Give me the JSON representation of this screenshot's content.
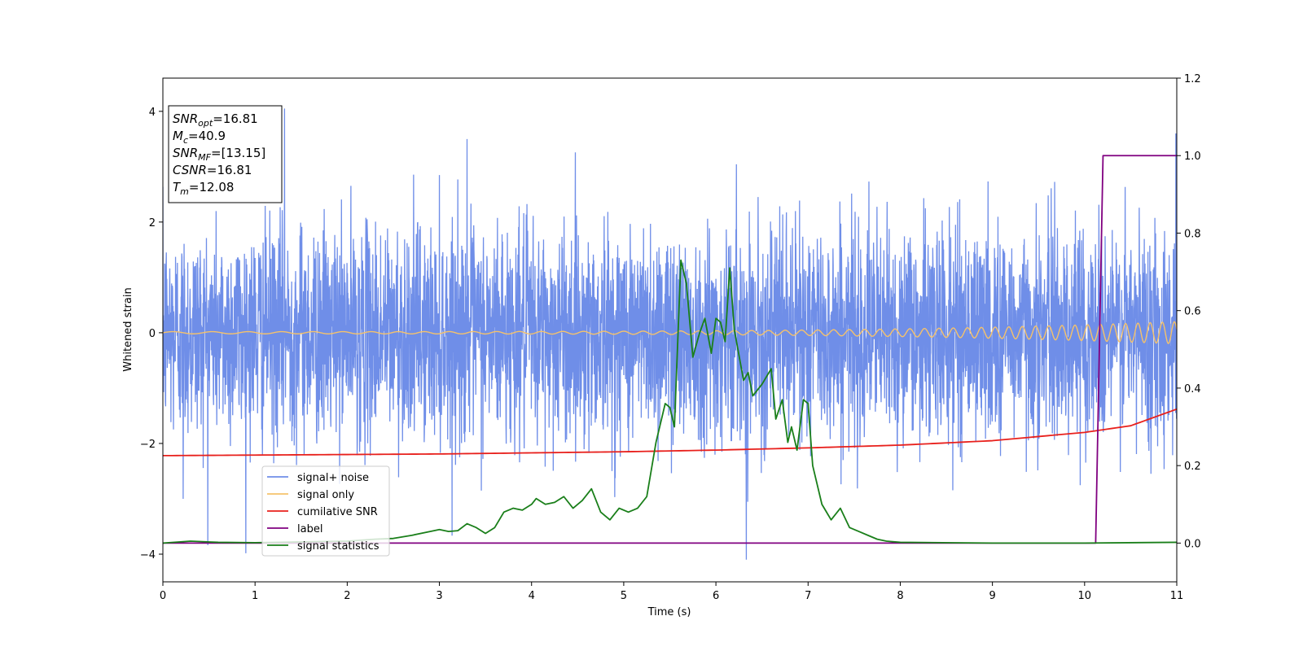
{
  "chart_data": {
    "type": "line",
    "xlabel": "Time (s)",
    "ylabel": "Whitened strain",
    "xlim": [
      0,
      11
    ],
    "ylim": [
      -4.5,
      4.6
    ],
    "y2lim": [
      -0.1,
      1.2
    ],
    "x_ticks": [
      0,
      1,
      2,
      3,
      4,
      5,
      6,
      7,
      8,
      9,
      10,
      11
    ],
    "y_ticks": [
      -4,
      -2,
      0,
      2,
      4
    ],
    "y_tick_labels": [
      "−4",
      "−2",
      "0",
      "2",
      "4"
    ],
    "y2_ticks": [
      0.0,
      0.2,
      0.4,
      0.6,
      0.8,
      1.0,
      1.2
    ],
    "y2_tick_labels": [
      "0.0",
      "0.2",
      "0.4",
      "0.6",
      "0.8",
      "1.0",
      "1.2"
    ],
    "grid": false,
    "legend_position": "lower-left",
    "info_box": {
      "lines": [
        {
          "base": "SNR",
          "sub": "opt",
          "value": "=16.81"
        },
        {
          "base": "M",
          "sub": "c",
          "value": "=40.9"
        },
        {
          "base": "SNR",
          "sub": "MF",
          "value": "=[13.15]"
        },
        {
          "base": "CSNR",
          "sub": "",
          "value": "=16.81"
        },
        {
          "base": "T",
          "sub": "m",
          "value": "=12.08"
        }
      ]
    },
    "series": [
      {
        "name": "signal+ noise",
        "color": "#6f8ee8",
        "axis": "left",
        "kind": "noise",
        "sigma": 0.95,
        "peak_examples": [
          [
            1.32,
            4.05
          ],
          [
            3.3,
            3.5
          ],
          [
            10.99,
            3.6
          ],
          [
            6.33,
            -4.1
          ],
          [
            0.22,
            -3.0
          ]
        ]
      },
      {
        "name": "signal only",
        "color": "#f5c26b",
        "axis": "left",
        "kind": "chirp",
        "amplitude_start": 0.02,
        "amplitude_end": 0.2
      },
      {
        "name": "cumilative SNR",
        "color": "#e8201c",
        "axis": "left",
        "x": [
          0,
          1,
          2,
          3,
          4,
          5,
          6,
          7,
          8,
          9,
          10,
          10.5,
          11
        ],
        "y": [
          -2.22,
          -2.21,
          -2.2,
          -2.19,
          -2.17,
          -2.15,
          -2.12,
          -2.08,
          -2.03,
          -1.95,
          -1.8,
          -1.68,
          -1.38
        ]
      },
      {
        "name": "label",
        "color": "#800080",
        "axis": "right",
        "x": [
          0,
          10.12,
          10.2,
          11
        ],
        "y": [
          0,
          0,
          1,
          1
        ]
      },
      {
        "name": "signal statistics",
        "color": "#1a7f1a",
        "axis": "right",
        "x": [
          0,
          0.3,
          0.6,
          1.0,
          1.5,
          2.0,
          2.3,
          2.5,
          2.7,
          2.9,
          3.0,
          3.1,
          3.2,
          3.3,
          3.4,
          3.5,
          3.6,
          3.7,
          3.8,
          3.9,
          4.0,
          4.05,
          4.15,
          4.25,
          4.35,
          4.45,
          4.55,
          4.65,
          4.75,
          4.85,
          4.95,
          5.05,
          5.15,
          5.25,
          5.35,
          5.45,
          5.5,
          5.55,
          5.62,
          5.68,
          5.75,
          5.82,
          5.88,
          5.95,
          6.0,
          6.05,
          6.1,
          6.15,
          6.2,
          6.3,
          6.35,
          6.4,
          6.5,
          6.6,
          6.65,
          6.72,
          6.78,
          6.82,
          6.88,
          6.95,
          7.0,
          7.05,
          7.15,
          7.25,
          7.35,
          7.45,
          7.55,
          7.65,
          7.75,
          7.85,
          8.0,
          9.0,
          10.0,
          11.0
        ],
        "y": [
          0.0,
          0.005,
          0.002,
          0.001,
          0.003,
          0.005,
          0.01,
          0.012,
          0.02,
          0.03,
          0.035,
          0.03,
          0.032,
          0.05,
          0.04,
          0.025,
          0.04,
          0.08,
          0.09,
          0.085,
          0.1,
          0.115,
          0.1,
          0.105,
          0.12,
          0.09,
          0.11,
          0.14,
          0.08,
          0.06,
          0.09,
          0.08,
          0.09,
          0.12,
          0.26,
          0.36,
          0.35,
          0.3,
          0.73,
          0.67,
          0.48,
          0.54,
          0.58,
          0.49,
          0.58,
          0.57,
          0.52,
          0.71,
          0.55,
          0.42,
          0.44,
          0.38,
          0.41,
          0.45,
          0.32,
          0.37,
          0.26,
          0.3,
          0.24,
          0.37,
          0.36,
          0.2,
          0.1,
          0.06,
          0.09,
          0.04,
          0.03,
          0.02,
          0.01,
          0.005,
          0.002,
          0.0,
          0.0,
          0.002
        ]
      }
    ]
  }
}
